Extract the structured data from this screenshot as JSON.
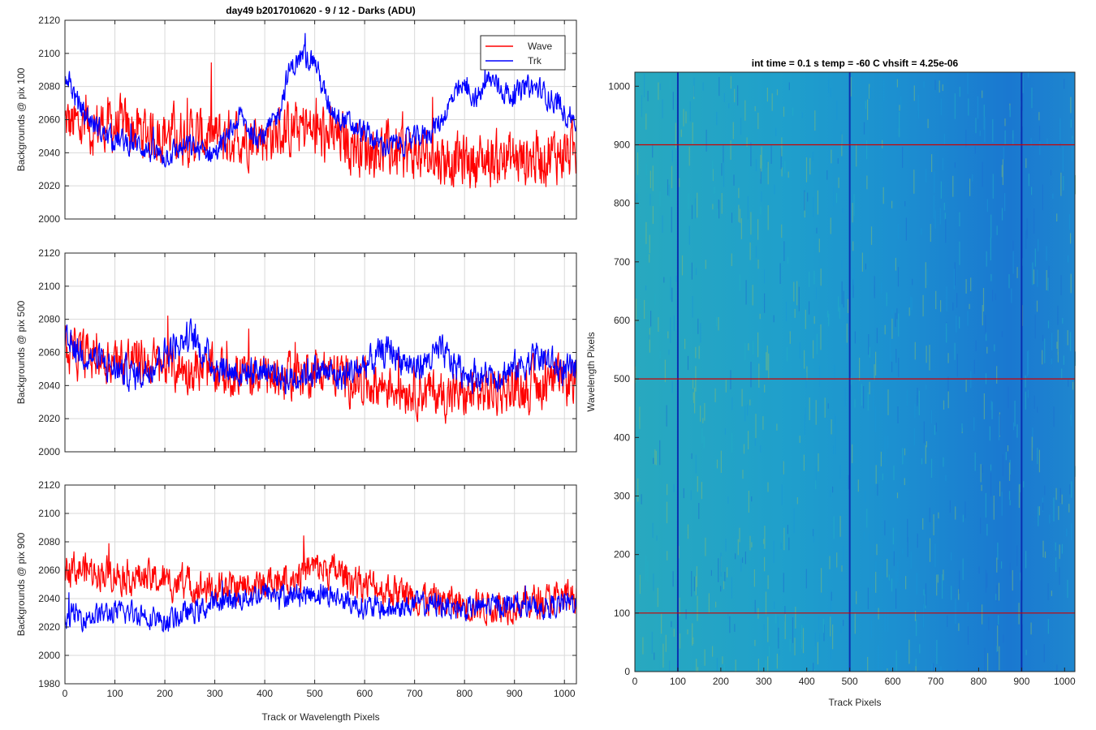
{
  "figure_title": "day49 b2017010620 - 9 / 12 - Darks (ADU)",
  "colors": {
    "wave": "#ff0000",
    "trk": "#0000ff",
    "grid": "#d9d9d9",
    "axis": "#262626"
  },
  "legend": {
    "entries": [
      "Wave",
      "Trk"
    ],
    "placement": "top-right"
  },
  "chart_data": [
    {
      "type": "line",
      "title": "day49 b2017010620 - 9 / 12 - Darks (ADU)",
      "xlabel": "",
      "ylabel": "Backgrounds @ pix 100",
      "xlim": [
        0,
        1024
      ],
      "ylim": [
        2000,
        2120
      ],
      "xticks": [
        0,
        100,
        200,
        300,
        400,
        500,
        600,
        700,
        800,
        900,
        1000
      ],
      "xtick_labels": [],
      "yticks": [
        2000,
        2020,
        2040,
        2060,
        2080,
        2100,
        2120
      ],
      "ytick_labels": [
        "2000",
        "2020",
        "2040",
        "2060",
        "2080",
        "2100",
        "2120"
      ],
      "grid": true,
      "legend": [
        "Wave",
        "Trk"
      ],
      "series": [
        {
          "name": "Wave",
          "color": "#ff0000",
          "x": [
            0,
            25,
            50,
            75,
            100,
            125,
            150,
            175,
            200,
            225,
            250,
            275,
            300,
            325,
            350,
            375,
            400,
            425,
            450,
            475,
            500,
            525,
            550,
            575,
            600,
            625,
            650,
            675,
            700,
            725,
            750,
            775,
            800,
            825,
            850,
            875,
            900,
            925,
            950,
            975,
            1000,
            1024
          ],
          "values": [
            2058,
            2056,
            2055,
            2057,
            2056,
            2054,
            2053,
            2052,
            2052,
            2051,
            2050,
            2050,
            2049,
            2049,
            2050,
            2051,
            2050,
            2052,
            2053,
            2055,
            2052,
            2050,
            2048,
            2046,
            2044,
            2042,
            2041,
            2040,
            2039,
            2038,
            2037,
            2036,
            2035,
            2035,
            2036,
            2037,
            2036,
            2036,
            2038,
            2039,
            2040,
            2041
          ],
          "noise": 14
        },
        {
          "name": "Trk",
          "color": "#0000ff",
          "x": [
            0,
            25,
            50,
            75,
            100,
            125,
            150,
            175,
            200,
            225,
            250,
            275,
            300,
            325,
            350,
            375,
            400,
            425,
            450,
            475,
            500,
            525,
            550,
            575,
            600,
            625,
            650,
            675,
            700,
            725,
            750,
            775,
            800,
            825,
            850,
            875,
            900,
            925,
            950,
            975,
            1000,
            1024
          ],
          "values": [
            2090,
            2070,
            2060,
            2052,
            2048,
            2046,
            2045,
            2040,
            2038,
            2042,
            2044,
            2041,
            2040,
            2048,
            2062,
            2052,
            2050,
            2062,
            2090,
            2098,
            2096,
            2070,
            2062,
            2056,
            2052,
            2046,
            2044,
            2046,
            2048,
            2052,
            2058,
            2072,
            2080,
            2072,
            2085,
            2078,
            2074,
            2080,
            2078,
            2072,
            2065,
            2060
          ],
          "noise": 6
        }
      ]
    },
    {
      "type": "line",
      "title": "",
      "xlabel": "",
      "ylabel": "Backgrounds @ pix 500",
      "xlim": [
        0,
        1024
      ],
      "ylim": [
        2000,
        2120
      ],
      "xticks": [
        0,
        100,
        200,
        300,
        400,
        500,
        600,
        700,
        800,
        900,
        1000
      ],
      "xtick_labels": [],
      "yticks": [
        2000,
        2020,
        2040,
        2060,
        2080,
        2100,
        2120
      ],
      "ytick_labels": [
        "2000",
        "2020",
        "2040",
        "2060",
        "2080",
        "2100",
        "2120"
      ],
      "grid": true,
      "series": [
        {
          "name": "Wave",
          "color": "#ff0000",
          "x": [
            0,
            50,
            100,
            150,
            200,
            250,
            300,
            350,
            400,
            450,
            500,
            550,
            600,
            650,
            700,
            750,
            800,
            850,
            900,
            950,
            1000,
            1024
          ],
          "values": [
            2060,
            2058,
            2056,
            2055,
            2052,
            2050,
            2048,
            2046,
            2046,
            2045,
            2050,
            2046,
            2042,
            2040,
            2038,
            2035,
            2034,
            2036,
            2038,
            2040,
            2042,
            2044
          ],
          "noise": 12
        },
        {
          "name": "Trk",
          "color": "#0000ff",
          "x": [
            0,
            50,
            100,
            150,
            200,
            250,
            300,
            350,
            400,
            450,
            500,
            550,
            600,
            650,
            700,
            750,
            800,
            850,
            900,
            950,
            1000,
            1024
          ],
          "values": [
            2065,
            2058,
            2050,
            2046,
            2060,
            2070,
            2052,
            2048,
            2050,
            2044,
            2050,
            2045,
            2052,
            2062,
            2050,
            2060,
            2048,
            2045,
            2050,
            2058,
            2048,
            2050
          ],
          "noise": 8
        }
      ]
    },
    {
      "type": "line",
      "title": "",
      "xlabel": "Track or Wavelength Pixels",
      "ylabel": "Backgrounds @ pix 900",
      "xlim": [
        0,
        1024
      ],
      "ylim": [
        1980,
        2120
      ],
      "xticks": [
        0,
        100,
        200,
        300,
        400,
        500,
        600,
        700,
        800,
        900,
        1000
      ],
      "xtick_labels": [
        "0",
        "100",
        "200",
        "300",
        "400",
        "500",
        "600",
        "700",
        "800",
        "900",
        "1000"
      ],
      "yticks": [
        1980,
        2000,
        2020,
        2040,
        2060,
        2080,
        2100,
        2120
      ],
      "ytick_labels": [
        "1980",
        "2000",
        "2020",
        "2040",
        "2060",
        "2080",
        "2100",
        "2120"
      ],
      "grid": true,
      "series": [
        {
          "name": "Wave",
          "color": "#ff0000",
          "x": [
            0,
            50,
            100,
            150,
            200,
            250,
            300,
            350,
            400,
            450,
            500,
            550,
            600,
            650,
            700,
            750,
            800,
            850,
            900,
            950,
            1000,
            1024
          ],
          "values": [
            2062,
            2060,
            2058,
            2055,
            2052,
            2050,
            2046,
            2048,
            2050,
            2055,
            2062,
            2058,
            2050,
            2046,
            2042,
            2038,
            2036,
            2035,
            2036,
            2038,
            2040,
            2042
          ],
          "noise": 10
        },
        {
          "name": "Trk",
          "color": "#0000ff",
          "x": [
            0,
            50,
            100,
            150,
            200,
            250,
            300,
            350,
            400,
            450,
            500,
            550,
            600,
            650,
            700,
            750,
            800,
            850,
            900,
            950,
            1000,
            1024
          ],
          "values": [
            2028,
            2028,
            2030,
            2030,
            2024,
            2030,
            2036,
            2040,
            2044,
            2042,
            2044,
            2040,
            2034,
            2032,
            2036,
            2036,
            2032,
            2035,
            2036,
            2034,
            2036,
            2038
          ],
          "noise": 7
        }
      ]
    },
    {
      "type": "heatmap",
      "title": "int time = 0.1 s   temp = -60 C   vhsift = 4.25e-06",
      "xlabel": "Track Pixels",
      "ylabel": "Wavelength Pixels",
      "xlim": [
        0,
        1024
      ],
      "ylim": [
        0,
        1024
      ],
      "xticks": [
        0,
        100,
        200,
        300,
        400,
        500,
        600,
        700,
        800,
        900,
        1000
      ],
      "xtick_labels": [
        "0",
        "100",
        "200",
        "300",
        "400",
        "500",
        "600",
        "700",
        "800",
        "900",
        "1000"
      ],
      "yticks": [
        0,
        100,
        200,
        300,
        400,
        500,
        600,
        700,
        800,
        900,
        1000
      ],
      "ytick_labels": [
        "0",
        "100",
        "200",
        "300",
        "400",
        "500",
        "600",
        "700",
        "800",
        "900",
        "1000"
      ],
      "colormap": [
        "#1b6fd0",
        "#1a96d6",
        "#23afc6",
        "#7dbb7a"
      ],
      "dark_columns": [
        100,
        500,
        900
      ],
      "marker_rows": [
        100,
        500,
        900
      ],
      "marker_row_color": "#cc0000",
      "dark_column_color": "#0a2fb0"
    }
  ]
}
